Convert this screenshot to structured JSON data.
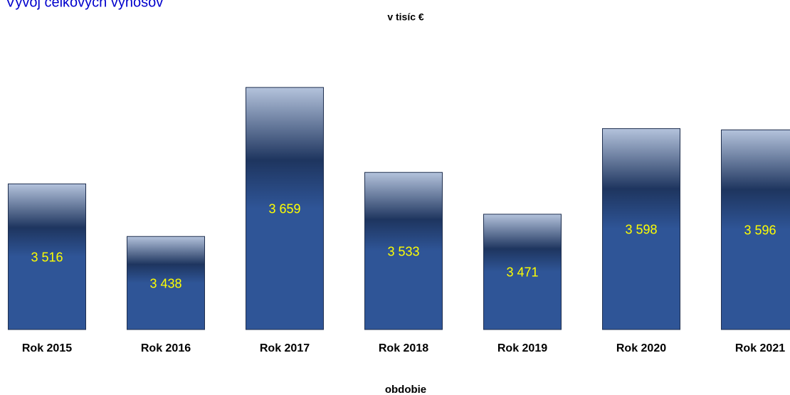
{
  "chart_data": {
    "type": "bar",
    "title": "Vývoj celkových výnosov",
    "subtitle": "v tisíc €",
    "x_label": "obdobie",
    "categories": [
      "Rok 2015",
      "Rok 2016",
      "Rok 2017",
      "Rok 2018",
      "Rok 2019",
      "Rok 2020",
      "Rok 2021"
    ],
    "values": [
      3516,
      3438,
      3659,
      3533,
      3471,
      3598,
      3596
    ],
    "value_labels": [
      "3 516",
      "3 438",
      "3 659",
      "3 533",
      "3 471",
      "3 598",
      "3 596"
    ],
    "color": "#2f5597",
    "label_color": "#ffff00",
    "ylim": [
      3300,
      3700
    ]
  }
}
